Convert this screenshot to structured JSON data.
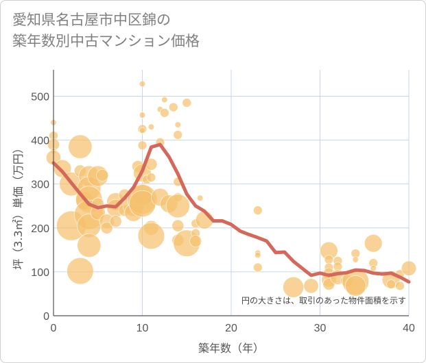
{
  "title_lines": [
    "愛知県名古屋市中区錦の",
    "築年数別中古マンション価格"
  ],
  "chart_data": {
    "type": "scatter",
    "xlabel": "築年数（年）",
    "ylabel": "坪（3.3㎡）単価（万円）",
    "xlim": [
      0,
      40
    ],
    "ylim": [
      0,
      560
    ],
    "xticks": [
      0,
      10,
      20,
      30,
      40
    ],
    "yticks": [
      0,
      100,
      200,
      300,
      400,
      500
    ],
    "grid": true,
    "annotation": "円の大きさは、取引のあった物件面積を示す",
    "colors": {
      "bubble": "#f5c06e",
      "line": "#d4685a",
      "grid": "#c9d5e3",
      "axis": "#555555"
    },
    "points": [
      {
        "x": 0,
        "y": 440,
        "s": 2
      },
      {
        "x": 0,
        "y": 410,
        "s": 3
      },
      {
        "x": 0,
        "y": 390,
        "s": 4
      },
      {
        "x": 0,
        "y": 375,
        "s": 2
      },
      {
        "x": 0,
        "y": 360,
        "s": 5
      },
      {
        "x": 1,
        "y": 335,
        "s": 6
      },
      {
        "x": 2,
        "y": 300,
        "s": 8
      },
      {
        "x": 2,
        "y": 205,
        "s": 10
      },
      {
        "x": 3,
        "y": 385,
        "s": 8
      },
      {
        "x": 3,
        "y": 330,
        "s": 4
      },
      {
        "x": 3,
        "y": 102,
        "s": 9
      },
      {
        "x": 3.5,
        "y": 262,
        "s": 6
      },
      {
        "x": 4,
        "y": 318,
        "s": 7
      },
      {
        "x": 4,
        "y": 290,
        "s": 8
      },
      {
        "x": 4,
        "y": 265,
        "s": 9
      },
      {
        "x": 4,
        "y": 230,
        "s": 10
      },
      {
        "x": 4,
        "y": 205,
        "s": 8
      },
      {
        "x": 4,
        "y": 160,
        "s": 8
      },
      {
        "x": 5,
        "y": 318,
        "s": 7
      },
      {
        "x": 5,
        "y": 255,
        "s": 4
      },
      {
        "x": 5,
        "y": 235,
        "s": 5
      },
      {
        "x": 5.5,
        "y": 320,
        "s": 4
      },
      {
        "x": 6,
        "y": 215,
        "s": 5
      },
      {
        "x": 6,
        "y": 200,
        "s": 4
      },
      {
        "x": 7,
        "y": 260,
        "s": 6
      },
      {
        "x": 7,
        "y": 245,
        "s": 6
      },
      {
        "x": 7,
        "y": 215,
        "s": 4
      },
      {
        "x": 8,
        "y": 275,
        "s": 4
      },
      {
        "x": 8,
        "y": 240,
        "s": 4
      },
      {
        "x": 9,
        "y": 250,
        "s": 7
      },
      {
        "x": 9,
        "y": 235,
        "s": 6
      },
      {
        "x": 9.5,
        "y": 340,
        "s": 4
      },
      {
        "x": 10,
        "y": 528,
        "s": 2
      },
      {
        "x": 10,
        "y": 457,
        "s": 2
      },
      {
        "x": 10,
        "y": 425,
        "s": 3
      },
      {
        "x": 10,
        "y": 422,
        "s": 2
      },
      {
        "x": 10,
        "y": 388,
        "s": 3
      },
      {
        "x": 10,
        "y": 325,
        "s": 6
      },
      {
        "x": 10,
        "y": 275,
        "s": 7
      },
      {
        "x": 10,
        "y": 265,
        "s": 10
      },
      {
        "x": 10,
        "y": 255,
        "s": 9
      },
      {
        "x": 10.5,
        "y": 310,
        "s": 3
      },
      {
        "x": 11,
        "y": 430,
        "s": 2
      },
      {
        "x": 11,
        "y": 345,
        "s": 4
      },
      {
        "x": 11,
        "y": 315,
        "s": 3
      },
      {
        "x": 11,
        "y": 200,
        "s": 5
      },
      {
        "x": 11,
        "y": 182,
        "s": 9
      },
      {
        "x": 12,
        "y": 470,
        "s": 2
      },
      {
        "x": 12,
        "y": 395,
        "s": 3
      },
      {
        "x": 12,
        "y": 270,
        "s": 6
      },
      {
        "x": 12.5,
        "y": 492,
        "s": 2
      },
      {
        "x": 12.5,
        "y": 462,
        "s": 3
      },
      {
        "x": 13,
        "y": 255,
        "s": 6
      },
      {
        "x": 13.5,
        "y": 475,
        "s": 3
      },
      {
        "x": 14,
        "y": 435,
        "s": 2
      },
      {
        "x": 14,
        "y": 412,
        "s": 3
      },
      {
        "x": 14,
        "y": 305,
        "s": 3
      },
      {
        "x": 14,
        "y": 270,
        "s": 3
      },
      {
        "x": 14,
        "y": 250,
        "s": 8
      },
      {
        "x": 14,
        "y": 205,
        "s": 4
      },
      {
        "x": 14,
        "y": 172,
        "s": 4
      },
      {
        "x": 15,
        "y": 485,
        "s": 3
      },
      {
        "x": 15,
        "y": 165,
        "s": 9
      },
      {
        "x": 16,
        "y": 210,
        "s": 3
      },
      {
        "x": 16,
        "y": 188,
        "s": 3
      },
      {
        "x": 16,
        "y": 170,
        "s": 4
      },
      {
        "x": 16.5,
        "y": 268,
        "s": 2
      },
      {
        "x": 17,
        "y": 218,
        "s": 6
      },
      {
        "x": 23,
        "y": 240,
        "s": 3
      },
      {
        "x": 23,
        "y": 143,
        "s": 2
      },
      {
        "x": 23,
        "y": 138,
        "s": 2
      },
      {
        "x": 23,
        "y": 110,
        "s": 3
      },
      {
        "x": 27,
        "y": 65,
        "s": 7
      },
      {
        "x": 29,
        "y": 68,
        "s": 5
      },
      {
        "x": 31,
        "y": 148,
        "s": 6
      },
      {
        "x": 31,
        "y": 128,
        "s": 3
      },
      {
        "x": 31,
        "y": 110,
        "s": 3
      },
      {
        "x": 31,
        "y": 95,
        "s": 4
      },
      {
        "x": 31,
        "y": 82,
        "s": 5
      },
      {
        "x": 31,
        "y": 72,
        "s": 4
      },
      {
        "x": 32,
        "y": 125,
        "s": 3
      },
      {
        "x": 32,
        "y": 112,
        "s": 3
      },
      {
        "x": 32,
        "y": 88,
        "s": 5
      },
      {
        "x": 33,
        "y": 80,
        "s": 4
      },
      {
        "x": 34,
        "y": 142,
        "s": 3
      },
      {
        "x": 34,
        "y": 128,
        "s": 2
      },
      {
        "x": 34,
        "y": 78,
        "s": 9
      },
      {
        "x": 34,
        "y": 68,
        "s": 7
      },
      {
        "x": 36,
        "y": 165,
        "s": 6
      },
      {
        "x": 36,
        "y": 120,
        "s": 3
      },
      {
        "x": 36,
        "y": 108,
        "s": 2
      },
      {
        "x": 38,
        "y": 82,
        "s": 6
      },
      {
        "x": 38,
        "y": 72,
        "s": 3
      },
      {
        "x": 39,
        "y": 68,
        "s": 3
      },
      {
        "x": 39,
        "y": 95,
        "s": 3
      },
      {
        "x": 40,
        "y": 108,
        "s": 5
      }
    ],
    "trend": [
      {
        "x": 0,
        "y": 348
      },
      {
        "x": 1,
        "y": 328
      },
      {
        "x": 2,
        "y": 303
      },
      {
        "x": 3,
        "y": 278
      },
      {
        "x": 4,
        "y": 254
      },
      {
        "x": 5,
        "y": 246
      },
      {
        "x": 6,
        "y": 250
      },
      {
        "x": 7,
        "y": 248
      },
      {
        "x": 8,
        "y": 268
      },
      {
        "x": 9,
        "y": 292
      },
      {
        "x": 10,
        "y": 330
      },
      {
        "x": 11,
        "y": 384
      },
      {
        "x": 12,
        "y": 390
      },
      {
        "x": 13,
        "y": 362
      },
      {
        "x": 14,
        "y": 323
      },
      {
        "x": 15,
        "y": 277
      },
      {
        "x": 16,
        "y": 250
      },
      {
        "x": 17,
        "y": 238
      },
      {
        "x": 18,
        "y": 216
      },
      {
        "x": 19,
        "y": 216
      },
      {
        "x": 20,
        "y": 208
      },
      {
        "x": 21,
        "y": 193
      },
      {
        "x": 22,
        "y": 185
      },
      {
        "x": 23,
        "y": 178
      },
      {
        "x": 24,
        "y": 170
      },
      {
        "x": 25,
        "y": 144
      },
      {
        "x": 26,
        "y": 145
      },
      {
        "x": 27,
        "y": 124
      },
      {
        "x": 28,
        "y": 108
      },
      {
        "x": 29,
        "y": 92
      },
      {
        "x": 30,
        "y": 97
      },
      {
        "x": 31,
        "y": 92
      },
      {
        "x": 32,
        "y": 96
      },
      {
        "x": 33,
        "y": 98
      },
      {
        "x": 34,
        "y": 104
      },
      {
        "x": 35,
        "y": 103
      },
      {
        "x": 36,
        "y": 97
      },
      {
        "x": 37,
        "y": 95
      },
      {
        "x": 38,
        "y": 97
      },
      {
        "x": 39,
        "y": 88
      },
      {
        "x": 40,
        "y": 77
      }
    ]
  }
}
